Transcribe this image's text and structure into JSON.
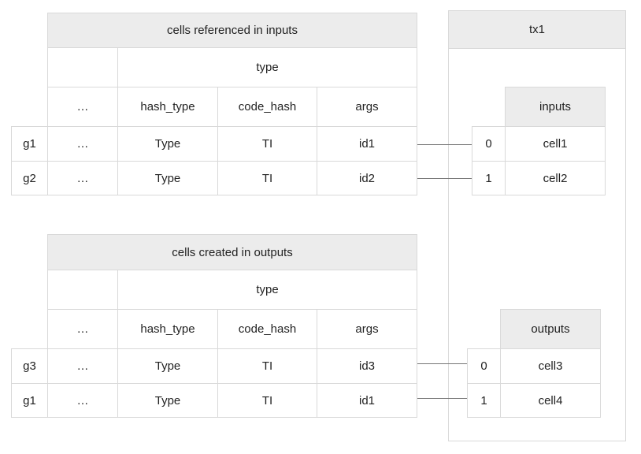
{
  "inputs_table": {
    "title": "cells referenced in inputs",
    "type_header": "type",
    "columns": [
      "…",
      "hash_type",
      "code_hash",
      "args"
    ],
    "rows": [
      {
        "group": "g1",
        "cells": [
          "…",
          "Type",
          "TI",
          "id1"
        ]
      },
      {
        "group": "g2",
        "cells": [
          "…",
          "Type",
          "TI",
          "id2"
        ]
      }
    ]
  },
  "outputs_table": {
    "title": "cells created in outputs",
    "type_header": "type",
    "columns": [
      "…",
      "hash_type",
      "code_hash",
      "args"
    ],
    "rows": [
      {
        "group": "g3",
        "cells": [
          "…",
          "Type",
          "TI",
          "id3"
        ]
      },
      {
        "group": "g1",
        "cells": [
          "…",
          "Type",
          "TI",
          "id1"
        ]
      }
    ]
  },
  "tx": {
    "title": "tx1",
    "inputs": {
      "header": "inputs",
      "rows": [
        {
          "index": "0",
          "cell": "cell1"
        },
        {
          "index": "1",
          "cell": "cell2"
        }
      ]
    },
    "outputs": {
      "header": "outputs",
      "rows": [
        {
          "index": "0",
          "cell": "cell3"
        },
        {
          "index": "1",
          "cell": "cell4"
        }
      ]
    }
  }
}
